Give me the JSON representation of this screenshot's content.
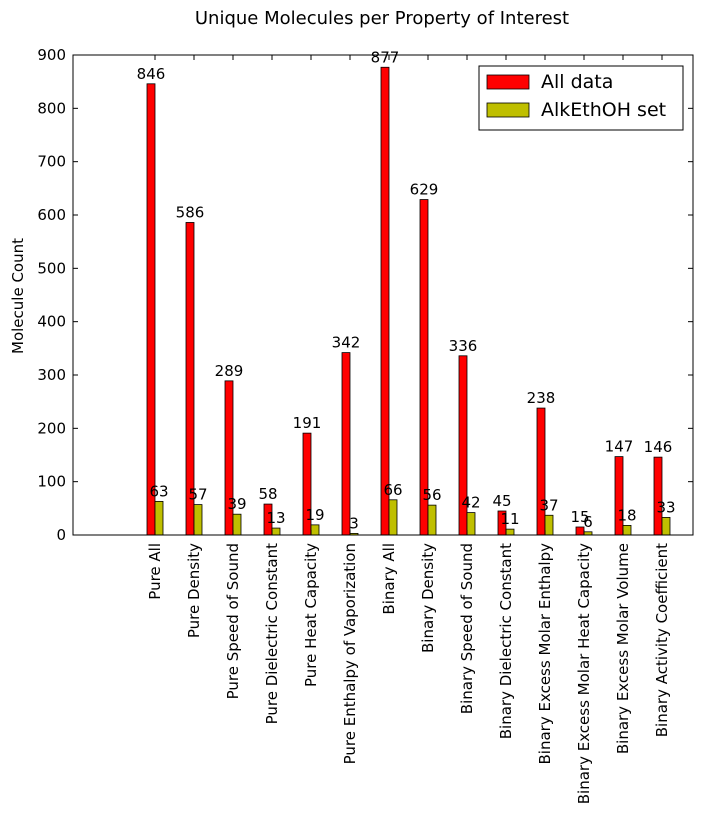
{
  "chart_data": {
    "type": "bar",
    "title": "Unique Molecules per Property of Interest",
    "xlabel": "",
    "ylabel": "Molecule Count",
    "ylim": [
      0,
      900
    ],
    "yticks": [
      0,
      100,
      200,
      300,
      400,
      500,
      600,
      700,
      800,
      900
    ],
    "grid": false,
    "legend_position": "top-right",
    "categories": [
      "Pure All",
      "Pure Density",
      "Pure Speed of Sound",
      "Pure Dielectric Constant",
      "Pure Heat Capacity",
      "Pure Enthalpy of Vaporization",
      "Binary All",
      "Binary Density",
      "Binary Speed of Sound",
      "Binary Dielectric Constant",
      "Binary Excess Molar Enthalpy",
      "Binary Excess Molar Heat Capacity",
      "Binary Excess Molar Volume",
      "Binary Activity Coefficient"
    ],
    "series": [
      {
        "name": "All data",
        "color": "#ff0000",
        "values": [
          846,
          586,
          289,
          58,
          191,
          342,
          877,
          629,
          336,
          45,
          238,
          15,
          147,
          146
        ]
      },
      {
        "name": "AlkEthOH set",
        "color": "#bfbf00",
        "values": [
          63,
          57,
          39,
          13,
          19,
          3,
          66,
          56,
          42,
          11,
          37,
          6,
          18,
          33
        ]
      }
    ]
  }
}
